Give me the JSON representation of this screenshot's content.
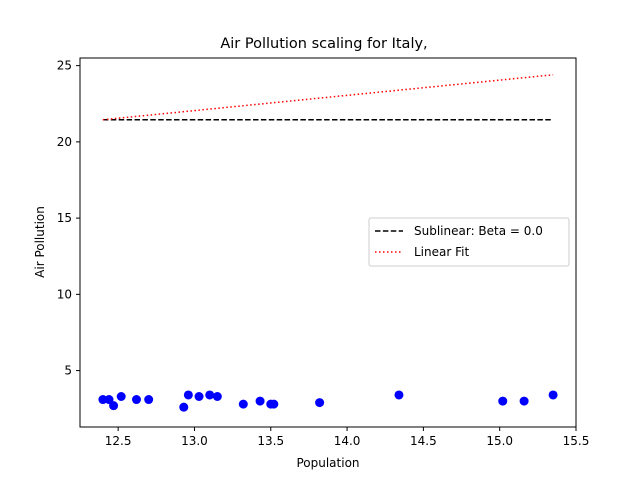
{
  "chart_data": {
    "type": "scatter",
    "title": "Air Pollution scaling for Italy,",
    "xlabel": "Population",
    "ylabel": "Air Pollution",
    "xlim": [
      12.25,
      15.5
    ],
    "ylim": [
      1.3,
      25.5
    ],
    "xticks": [
      "12.5",
      "13.0",
      "13.5",
      "14.0",
      "14.5",
      "15.0",
      "15.5"
    ],
    "yticks": [
      "5",
      "10",
      "15",
      "20",
      "25"
    ],
    "grid": false,
    "legend_position": "center-right",
    "scatter": {
      "color": "#0000ff",
      "points": [
        {
          "x": 12.4,
          "y": 3.1
        },
        {
          "x": 12.44,
          "y": 3.1
        },
        {
          "x": 12.47,
          "y": 2.7
        },
        {
          "x": 12.52,
          "y": 3.3
        },
        {
          "x": 12.62,
          "y": 3.1
        },
        {
          "x": 12.7,
          "y": 3.1
        },
        {
          "x": 12.93,
          "y": 2.6
        },
        {
          "x": 12.96,
          "y": 3.4
        },
        {
          "x": 13.03,
          "y": 3.3
        },
        {
          "x": 13.1,
          "y": 3.4
        },
        {
          "x": 13.15,
          "y": 3.3
        },
        {
          "x": 13.32,
          "y": 2.8
        },
        {
          "x": 13.43,
          "y": 3.0
        },
        {
          "x": 13.5,
          "y": 2.8
        },
        {
          "x": 13.52,
          "y": 2.8
        },
        {
          "x": 13.82,
          "y": 2.9
        },
        {
          "x": 14.34,
          "y": 3.4
        },
        {
          "x": 15.02,
          "y": 3.0
        },
        {
          "x": 15.16,
          "y": 3.0
        },
        {
          "x": 15.35,
          "y": 3.4
        }
      ]
    },
    "series": [
      {
        "name": "Sublinear: Beta = 0.0",
        "style": "dashed",
        "color": "#000000",
        "x": [
          12.4,
          15.35
        ],
        "y": [
          21.45,
          21.45
        ]
      },
      {
        "name": "Linear Fit",
        "style": "dotted",
        "color": "#ff0000",
        "x": [
          12.4,
          15.35
        ],
        "y": [
          21.45,
          24.4
        ]
      }
    ]
  }
}
